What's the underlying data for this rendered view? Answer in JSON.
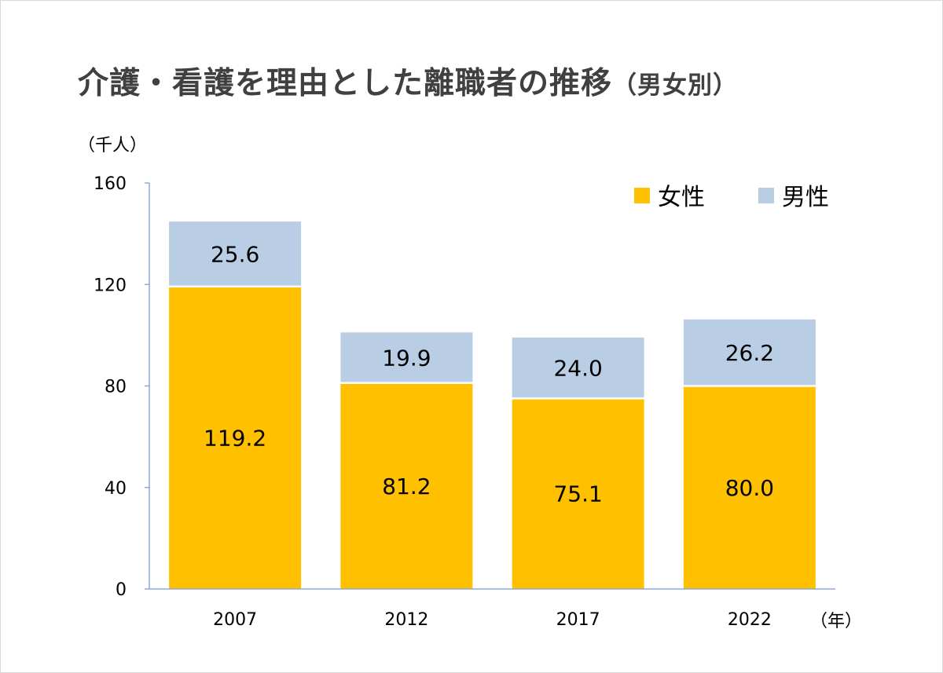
{
  "chart_data": {
    "type": "bar",
    "stacked": true,
    "title": "介護・看護を理由とした離職者の推移",
    "title_suffix": "（男女別）",
    "ylabel": "（千人）",
    "xlabel": "（年）",
    "categories": [
      "2007",
      "2012",
      "2017",
      "2022"
    ],
    "series": [
      {
        "name": "女性",
        "color": "#FFC000",
        "values": [
          119.2,
          81.2,
          75.1,
          80.0
        ],
        "labels": [
          "119.2",
          "81.2",
          "75.1",
          "80.0"
        ]
      },
      {
        "name": "男性",
        "color": "#B9CDE5",
        "values": [
          25.6,
          19.9,
          24.0,
          26.2
        ],
        "labels": [
          "25.6",
          "19.9",
          "24.0",
          "26.2"
        ]
      }
    ],
    "ylim": [
      0,
      160
    ],
    "yticks": [
      "0",
      "40",
      "80",
      "120",
      "160"
    ],
    "grid": false,
    "legend": "top-right"
  }
}
